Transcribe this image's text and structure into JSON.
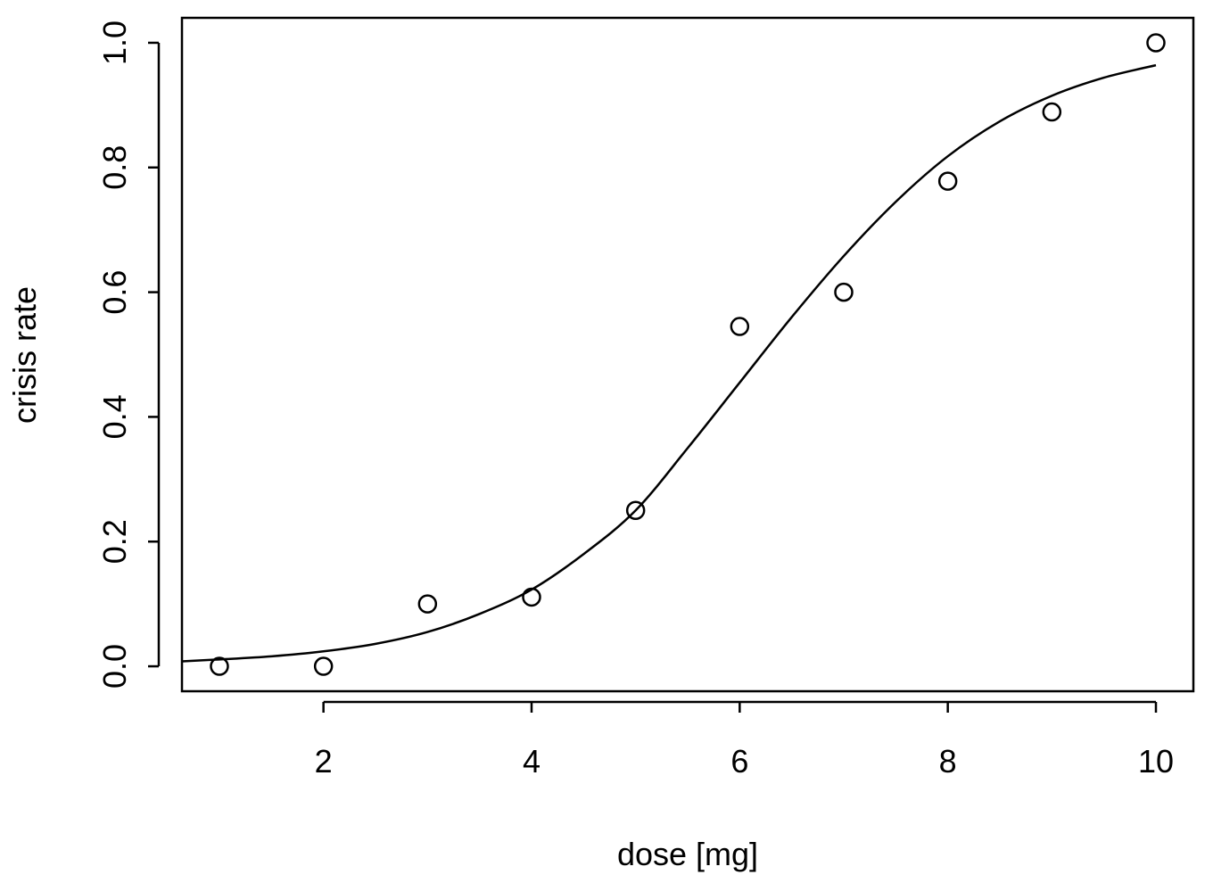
{
  "chart_data": {
    "type": "scatter",
    "title": "",
    "xlabel": "dose [mg]",
    "ylabel": "crisis rate",
    "xlim": [
      0.64,
      10.36
    ],
    "ylim": [
      -0.04,
      1.04
    ],
    "xticks": [
      2,
      4,
      6,
      8,
      10
    ],
    "yticks": [
      0.0,
      0.2,
      0.4,
      0.6,
      0.8,
      1.0
    ],
    "xtick_labels": [
      "2",
      "4",
      "6",
      "8",
      "10"
    ],
    "ytick_labels": [
      "0.0",
      "0.2",
      "0.4",
      "0.6",
      "0.8",
      "1.0"
    ],
    "grid": false,
    "series": [
      {
        "type": "scatter",
        "marker": "open-circle",
        "x": [
          1,
          2,
          3,
          4,
          5,
          6,
          7,
          8,
          9,
          10
        ],
        "y": [
          0.0,
          0.0,
          0.1,
          0.111,
          0.25,
          0.545,
          0.6,
          0.778,
          0.889,
          1.0
        ]
      },
      {
        "type": "line",
        "style": "fitted-curve",
        "x": [
          0.64,
          1,
          1.5,
          2,
          2.5,
          3,
          3.5,
          4,
          4.5,
          5,
          5.5,
          6,
          6.5,
          7,
          7.5,
          8,
          8.5,
          9,
          9.5,
          10
        ],
        "y": [
          0.008,
          0.011,
          0.016,
          0.024,
          0.036,
          0.055,
          0.084,
          0.123,
          0.18,
          0.25,
          0.35,
          0.455,
          0.56,
          0.658,
          0.745,
          0.818,
          0.874,
          0.915,
          0.944,
          0.964
        ]
      }
    ]
  }
}
